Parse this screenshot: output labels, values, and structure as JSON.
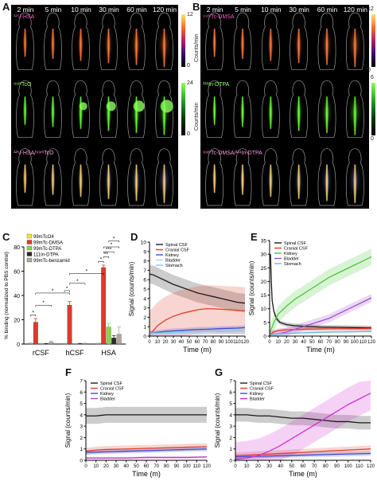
{
  "panels": {
    "A": "A",
    "B": "B",
    "C": "C",
    "D": "D",
    "E": "E",
    "F": "F",
    "G": "G"
  },
  "time_labels": [
    "2 min",
    "5 min",
    "10 min",
    "30 min",
    "60 min",
    "120 min"
  ],
  "panel_A": {
    "rows": [
      {
        "label": "¹²⁵I-HSA",
        "scale_max": "12",
        "scale_min": "0",
        "unit": "Counts/min",
        "color": "#ff7a3c"
      },
      {
        "label": "⁹⁹ᵐTcO",
        "scale_max": "24",
        "scale_min": "0",
        "unit": "Counts/min",
        "color": "#6dff3a"
      },
      {
        "label": "¹²⁵I-HSA/⁹⁹ᵐTcO",
        "scale_max": "",
        "scale_min": "",
        "unit": "",
        "color": "#ffd27a"
      }
    ]
  },
  "panel_B": {
    "rows": [
      {
        "label": "⁹⁹ᵐTc-DMSA",
        "scale_max": "12",
        "scale_min": "0",
        "unit": "Counts/min",
        "color": "#ff7a3c"
      },
      {
        "label": "¹¹¹In-DTPA",
        "scale_max": "6",
        "scale_min": "0",
        "unit": "Counts/min",
        "color": "#6dff3a"
      },
      {
        "label": "⁹⁹ᵐTc-DMSA/¹¹¹In-DTPA",
        "scale_max": "",
        "scale_min": "",
        "unit": "",
        "color": "#ffd27a"
      }
    ]
  },
  "chart_data": [
    {
      "panel": "C",
      "type": "bar",
      "ylabel": "% binding (normalized to PBS control)",
      "ylim": [
        0,
        80
      ],
      "yticks": [
        0,
        20,
        40,
        60,
        80
      ],
      "categories": [
        "rCSF",
        "hCSF",
        "HSA"
      ],
      "series": [
        {
          "name": "99mTcO4",
          "color": "#f2e733",
          "values": [
            0.5,
            0.3,
            0.4
          ],
          "errors": [
            0.3,
            0.2,
            0.3
          ]
        },
        {
          "name": "99mTc-DMSA",
          "color": "#e03a2a",
          "values": [
            18,
            32,
            63
          ],
          "errors": [
            3,
            3,
            2
          ]
        },
        {
          "name": "99mTc-DTPA",
          "color": "#8ad24c",
          "values": [
            0.4,
            0.3,
            14
          ],
          "errors": [
            0.2,
            0.2,
            3
          ]
        },
        {
          "name": "111In-DTPA",
          "color": "#2a2a2a",
          "values": [
            0.3,
            0.3,
            5
          ],
          "errors": [
            0.2,
            0.2,
            2
          ]
        },
        {
          "name": "99mTc-benzamid",
          "color": "#b0a79c",
          "values": [
            1.5,
            0.5,
            8
          ],
          "errors": [
            1,
            0.3,
            6
          ]
        }
      ],
      "significance": [
        "*",
        "*",
        "*",
        "*",
        "*",
        "*",
        "*",
        "**",
        "***",
        "*",
        "*"
      ]
    },
    {
      "panel": "D",
      "type": "line",
      "xlabel": "Time (m)",
      "ylabel": "Signal (counts/min)",
      "xlim": [
        0,
        120
      ],
      "ylim": [
        0,
        10
      ],
      "xticks": [
        0,
        10,
        20,
        30,
        40,
        50,
        60,
        70,
        80,
        90,
        100,
        110,
        120
      ],
      "yticks": [
        0,
        1,
        2,
        3,
        4,
        5,
        6,
        7,
        8,
        9,
        10
      ],
      "legend": "top-right",
      "series": [
        {
          "name": "Spinal CSF",
          "color": "#1a1a1a",
          "x": [
            0,
            5,
            10,
            20,
            30,
            40,
            50,
            60,
            70,
            80,
            90,
            100,
            110,
            120
          ],
          "y": [
            6.6,
            6.5,
            6.3,
            5.9,
            5.5,
            5.2,
            4.9,
            4.6,
            4.4,
            4.2,
            4.0,
            3.8,
            3.6,
            3.5
          ],
          "err": 1.0
        },
        {
          "name": "Cranial CSF",
          "color": "#e0402a",
          "x": [
            0,
            5,
            10,
            20,
            30,
            40,
            50,
            60,
            70,
            80,
            90,
            100,
            110,
            120
          ],
          "y": [
            0.2,
            0.6,
            1.1,
            1.7,
            2.1,
            2.4,
            2.6,
            2.8,
            2.9,
            2.9,
            2.85,
            2.8,
            2.75,
            2.7
          ],
          "err": 2.5
        },
        {
          "name": "Kidney",
          "color": "#3a4fd0",
          "x": [
            0,
            10,
            20,
            30,
            40,
            50,
            60,
            70,
            80,
            90,
            100,
            110,
            120
          ],
          "y": [
            0.3,
            0.4,
            0.5,
            0.55,
            0.6,
            0.65,
            0.7,
            0.72,
            0.75,
            0.8,
            0.82,
            0.85,
            0.9
          ],
          "err": 0.25
        },
        {
          "name": "Bladder",
          "color": "#c9c4e8",
          "x": [
            0,
            20,
            40,
            60,
            80,
            100,
            120
          ],
          "y": [
            0.2,
            0.2,
            0.25,
            0.25,
            0.3,
            0.3,
            0.3
          ],
          "err": 0.1
        },
        {
          "name": "Stomach",
          "color": "#7ad0e8",
          "x": [
            0,
            20,
            40,
            60,
            80,
            100,
            120
          ],
          "y": [
            0.3,
            0.35,
            0.4,
            0.45,
            0.5,
            0.5,
            0.55
          ],
          "err": 0.15
        }
      ]
    },
    {
      "panel": "E",
      "type": "line",
      "xlabel": "Time (m)",
      "ylabel": "Signal (counts/min)",
      "xlim": [
        0,
        120
      ],
      "ylim": [
        0,
        35
      ],
      "xticks": [
        0,
        10,
        20,
        30,
        40,
        50,
        60,
        70,
        80,
        90,
        100,
        110,
        120
      ],
      "yticks": [
        0,
        5,
        10,
        15,
        20,
        25,
        30,
        35
      ],
      "legend": "top-left",
      "series": [
        {
          "name": "Spinal CSF",
          "color": "#1a1a1a",
          "x": [
            1,
            2,
            3,
            5,
            8,
            12,
            20,
            30,
            45,
            60,
            80,
            100,
            120
          ],
          "y": [
            30,
            20,
            13,
            9,
            6.5,
            5,
            4.2,
            3.8,
            3.5,
            3.3,
            3.2,
            3.1,
            3.0
          ],
          "err": 0.8
        },
        {
          "name": "Cranial CSF",
          "color": "#e0402a",
          "x": [
            0,
            5,
            10,
            20,
            40,
            60,
            80,
            100,
            120
          ],
          "y": [
            0.5,
            1.5,
            2.0,
            2.3,
            2.5,
            2.6,
            2.7,
            2.7,
            2.8
          ],
          "err": 0.8
        },
        {
          "name": "Kidney",
          "color": "#4ac83a",
          "x": [
            0,
            5,
            10,
            20,
            30,
            40,
            50,
            60,
            70,
            80,
            90,
            100,
            110,
            120
          ],
          "y": [
            1,
            5,
            8,
            11,
            13.5,
            15.5,
            17.5,
            19.5,
            21.5,
            23,
            24.5,
            26,
            27.5,
            29
          ],
          "err": 3
        },
        {
          "name": "Bladder",
          "color": "#a050d0",
          "x": [
            0,
            10,
            20,
            30,
            40,
            50,
            60,
            70,
            80,
            90,
            100,
            110,
            120
          ],
          "y": [
            0.5,
            0.8,
            1.5,
            2.5,
            3.5,
            4.5,
            5.5,
            6.5,
            8,
            9.5,
            11,
            12.5,
            14
          ],
          "err": 1.5
        },
        {
          "name": "Stomach",
          "color": "#6fb7e8",
          "x": [
            0,
            20,
            40,
            60,
            80,
            100,
            120
          ],
          "y": [
            0.5,
            1,
            1.2,
            1.4,
            1.5,
            1.6,
            1.7
          ],
          "err": 0.4
        }
      ]
    },
    {
      "panel": "F",
      "type": "line",
      "xlabel": "Time (m)",
      "ylabel": "Signal (counts/min)",
      "xlim": [
        0,
        120
      ],
      "ylim": [
        0,
        7
      ],
      "xticks": [
        0,
        10,
        20,
        30,
        40,
        50,
        60,
        70,
        80,
        90,
        100,
        110,
        120
      ],
      "yticks": [
        0,
        1,
        2,
        3,
        4,
        5,
        6,
        7
      ],
      "legend": "top-left",
      "series": [
        {
          "name": "Spinal CSF",
          "color": "#1a1a1a",
          "x": [
            0,
            10,
            20,
            30,
            40,
            50,
            60,
            70,
            80,
            90,
            100,
            110,
            120
          ],
          "y": [
            3.9,
            3.9,
            4.0,
            4.0,
            4.0,
            4.0,
            4.0,
            4.0,
            4.0,
            4.0,
            4.0,
            4.0,
            4.0
          ],
          "err": 0.7
        },
        {
          "name": "Cranial CSF",
          "color": "#e0402a",
          "x": [
            0,
            10,
            20,
            40,
            60,
            80,
            100,
            120
          ],
          "y": [
            0.8,
            0.9,
            0.95,
            1.0,
            1.05,
            1.1,
            1.15,
            1.2
          ],
          "err": 0.3
        },
        {
          "name": "Kidney",
          "color": "#3a4fd0",
          "x": [
            0,
            20,
            40,
            60,
            80,
            100,
            120
          ],
          "y": [
            0.7,
            0.75,
            0.8,
            0.85,
            0.9,
            0.95,
            1.0
          ],
          "err": 0.2
        },
        {
          "name": "Bladder",
          "color": "#c040c0",
          "x": [
            0,
            20,
            40,
            60,
            80,
            100,
            120
          ],
          "y": [
            0.2,
            0.2,
            0.2,
            0.25,
            0.25,
            0.25,
            0.3
          ],
          "err": 0.1
        }
      ]
    },
    {
      "panel": "G",
      "type": "line",
      "xlabel": "Time (m)",
      "ylabel": "Signal (counts/min)",
      "xlim": [
        0,
        120
      ],
      "ylim": [
        0,
        7
      ],
      "xticks": [
        0,
        10,
        20,
        30,
        40,
        50,
        60,
        70,
        80,
        90,
        100,
        110,
        120
      ],
      "yticks": [
        0,
        1,
        2,
        3,
        4,
        5,
        6,
        7
      ],
      "legend": "top-left",
      "series": [
        {
          "name": "Spinal CSF",
          "color": "#1a1a1a",
          "x": [
            0,
            10,
            20,
            30,
            40,
            50,
            60,
            70,
            80,
            90,
            100,
            110,
            120
          ],
          "y": [
            4.0,
            4.0,
            3.9,
            3.9,
            3.8,
            3.7,
            3.7,
            3.6,
            3.5,
            3.4,
            3.4,
            3.3,
            3.3
          ],
          "err": 0.6
        },
        {
          "name": "Cranial CSF",
          "color": "#e0402a",
          "x": [
            0,
            20,
            40,
            60,
            80,
            100,
            120
          ],
          "y": [
            0.4,
            0.5,
            0.6,
            0.7,
            0.8,
            0.9,
            1.0
          ],
          "err": 0.3
        },
        {
          "name": "Kidney",
          "color": "#3a4fd0",
          "x": [
            0,
            20,
            40,
            60,
            80,
            100,
            120
          ],
          "y": [
            0.3,
            0.35,
            0.4,
            0.45,
            0.5,
            0.55,
            0.6
          ],
          "err": 0.2
        },
        {
          "name": "Bladder",
          "color": "#d030d0",
          "x": [
            0,
            10,
            20,
            30,
            40,
            50,
            60,
            70,
            80,
            90,
            100,
            110,
            120
          ],
          "y": [
            0.1,
            0.2,
            0.4,
            0.8,
            1.3,
            1.9,
            2.5,
            3.1,
            3.7,
            4.3,
            4.9,
            5.4,
            5.9
          ],
          "err": 1.5
        }
      ]
    }
  ]
}
